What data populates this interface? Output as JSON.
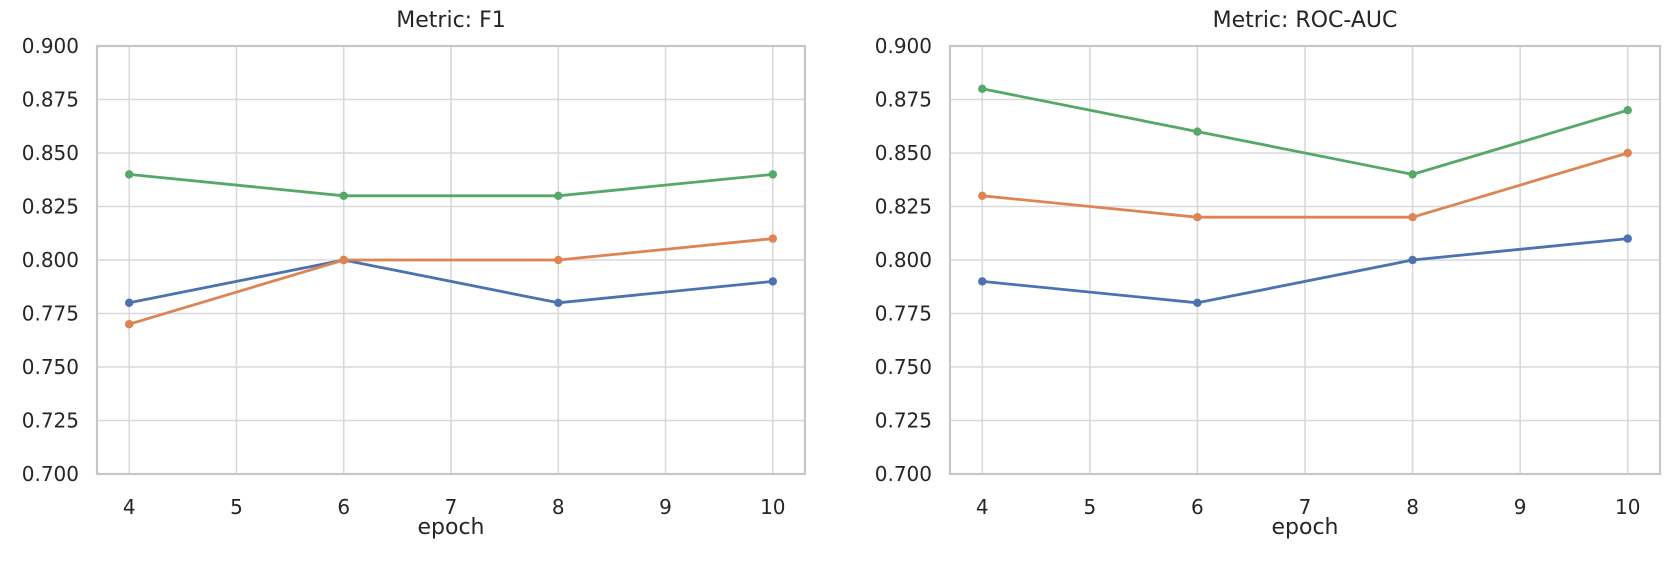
{
  "figure": {
    "background": "#ffffff",
    "text_color": "#262626",
    "grid_color": "#d9d9d9",
    "spine_color": "#c6c6c6"
  },
  "chart_data": [
    {
      "type": "line",
      "title": "Metric: F1",
      "xlabel": "epoch",
      "ylabel": "",
      "x": [
        4,
        6,
        8,
        10
      ],
      "xticks": [
        4,
        5,
        6,
        7,
        8,
        9,
        10
      ],
      "ytick_labels": [
        "0.700",
        "0.725",
        "0.750",
        "0.775",
        "0.800",
        "0.825",
        "0.850",
        "0.875",
        "0.900"
      ],
      "xlim": [
        3.7,
        10.3
      ],
      "ylim": [
        0.7,
        0.9
      ],
      "grid": true,
      "legend": "none",
      "series": [
        {
          "name": "series-blue",
          "color": "#4C72B0",
          "values": [
            0.78,
            0.8,
            0.78,
            0.79
          ]
        },
        {
          "name": "series-orange",
          "color": "#DD8452",
          "values": [
            0.77,
            0.8,
            0.8,
            0.81
          ]
        },
        {
          "name": "series-green",
          "color": "#55A868",
          "values": [
            0.84,
            0.83,
            0.83,
            0.84
          ]
        }
      ]
    },
    {
      "type": "line",
      "title": "Metric: ROC-AUC",
      "xlabel": "epoch",
      "ylabel": "",
      "x": [
        4,
        6,
        8,
        10
      ],
      "xticks": [
        4,
        5,
        6,
        7,
        8,
        9,
        10
      ],
      "ytick_labels": [
        "0.700",
        "0.725",
        "0.750",
        "0.775",
        "0.800",
        "0.825",
        "0.850",
        "0.875",
        "0.900"
      ],
      "xlim": [
        3.7,
        10.3
      ],
      "ylim": [
        0.7,
        0.9
      ],
      "grid": true,
      "legend": "none",
      "series": [
        {
          "name": "series-blue",
          "color": "#4C72B0",
          "values": [
            0.79,
            0.78,
            0.8,
            0.81
          ]
        },
        {
          "name": "series-orange",
          "color": "#DD8452",
          "values": [
            0.83,
            0.82,
            0.82,
            0.85
          ]
        },
        {
          "name": "series-green",
          "color": "#55A868",
          "values": [
            0.88,
            0.86,
            0.84,
            0.87
          ]
        }
      ]
    }
  ]
}
